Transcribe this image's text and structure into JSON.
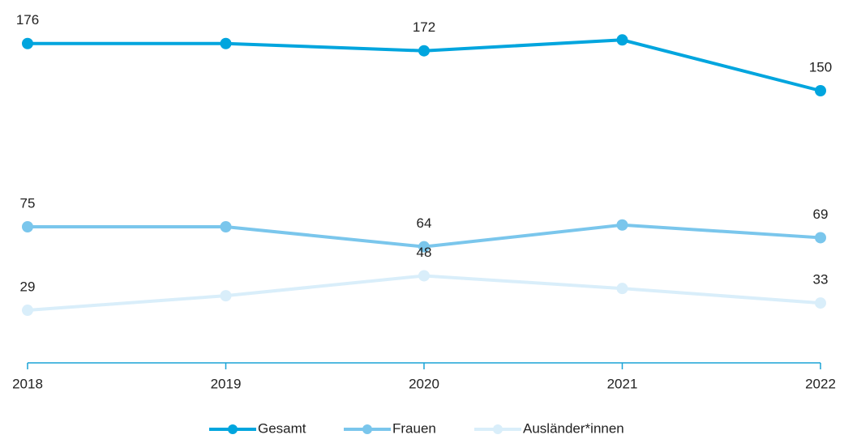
{
  "chart_data": {
    "type": "line",
    "categories": [
      "2018",
      "2019",
      "2020",
      "2021",
      "2022"
    ],
    "ylim": [
      0,
      200
    ],
    "series": [
      {
        "name": "Gesamt",
        "color": "#00a5de",
        "values": [
          176,
          176,
          172,
          178,
          150
        ],
        "value_labels": [
          "176",
          null,
          "172",
          null,
          "150"
        ]
      },
      {
        "name": "Frauen",
        "color": "#7ac6ec",
        "values": [
          75,
          75,
          64,
          76,
          69
        ],
        "value_labels": [
          "75",
          null,
          "64",
          null,
          "69"
        ]
      },
      {
        "name": "Ausländer*innen",
        "color": "#d9eefa",
        "values": [
          29,
          37,
          48,
          41,
          33
        ],
        "value_labels": [
          "29",
          null,
          "48",
          null,
          "33"
        ]
      }
    ]
  }
}
